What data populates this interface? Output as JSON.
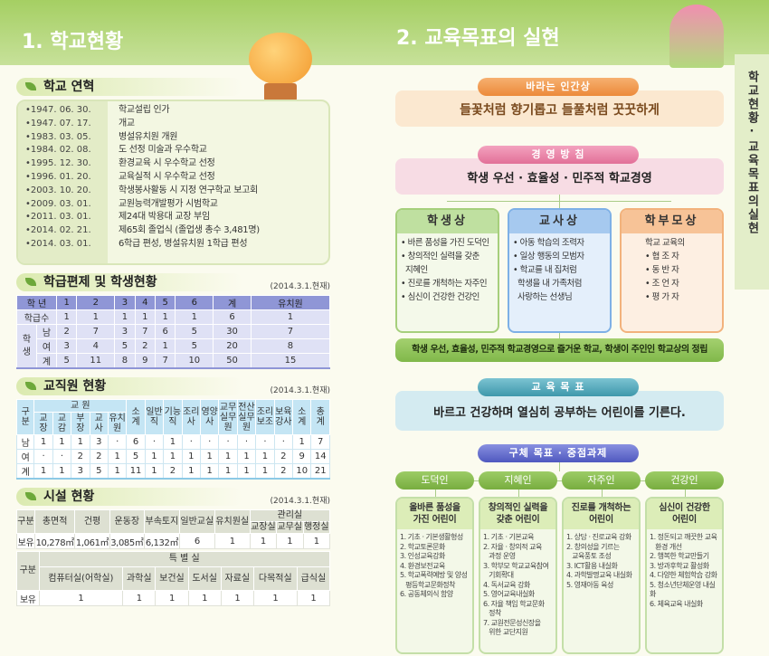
{
  "left": {
    "title": "1. 학교현황",
    "history": {
      "title": "학교 연혁",
      "items": [
        {
          "date": "•1947. 06. 30.",
          "text": "학교설립 인가"
        },
        {
          "date": "•1947. 07. 17.",
          "text": "개교"
        },
        {
          "date": "•1983. 03. 05.",
          "text": "병설유치원 개원"
        },
        {
          "date": "•1984. 02. 08.",
          "text": "도 선정 미술과 우수학교"
        },
        {
          "date": "•1995. 12. 30.",
          "text": "환경교육 시 우수학교 선정"
        },
        {
          "date": "•1996. 01. 20.",
          "text": "교육실적 시 우수학교 선정"
        },
        {
          "date": "•2003. 10. 20.",
          "text": "학생봉사활동 시 지정 연구학교 보고회"
        },
        {
          "date": "•2009. 03. 01.",
          "text": "교원능력개발평가 시범학교"
        },
        {
          "date": "•2011. 03. 01.",
          "text": "제24대 박용대 교장 부임"
        },
        {
          "date": "•2014. 02. 21.",
          "text": "제65회 졸업식 (졸업생 총수 3,481명)"
        },
        {
          "date": "•2014. 03. 01.",
          "text": "6학급 편성, 병설유치원 1학급 편성"
        }
      ]
    },
    "classes": {
      "title": "학급편제 및 학생현황",
      "note": "(2014.3.1.현재)",
      "header": [
        "학 년",
        "1",
        "2",
        "3",
        "4",
        "5",
        "6",
        "계",
        "유치원"
      ],
      "class_row": {
        "label": "학급수",
        "values": [
          "1",
          "1",
          "1",
          "1",
          "1",
          "1",
          "6",
          "1"
        ]
      },
      "student_label": "학 생",
      "rows": [
        {
          "label": "남",
          "values": [
            "2",
            "7",
            "3",
            "7",
            "6",
            "5",
            "30",
            "7"
          ]
        },
        {
          "label": "여",
          "values": [
            "3",
            "4",
            "5",
            "2",
            "1",
            "5",
            "20",
            "8"
          ]
        },
        {
          "label": "계",
          "values": [
            "5",
            "11",
            "8",
            "9",
            "7",
            "10",
            "50",
            "15"
          ]
        }
      ]
    },
    "staff": {
      "title": "교직원 현황",
      "note": "(2014.3.1.현재)",
      "corner": "구 분",
      "group": "교 원",
      "group_cols": [
        "교 장",
        "교 감",
        "부 장",
        "교 사",
        "유치원"
      ],
      "cols": [
        "소 계",
        "일반직",
        "기능직",
        "조리사",
        "영양사",
        "교무실무원",
        "전산실무원",
        "조리보조",
        "보육강사",
        "소 계",
        "총 계"
      ],
      "rows": [
        {
          "label": "남",
          "values": [
            "1",
            "1",
            "1",
            "3",
            "·",
            "6",
            "·",
            "1",
            "·",
            "·",
            "·",
            "·",
            "·",
            "·",
            "1",
            "7"
          ]
        },
        {
          "label": "여",
          "values": [
            "·",
            "·",
            "2",
            "2",
            "1",
            "5",
            "1",
            "1",
            "1",
            "1",
            "1",
            "1",
            "1",
            "2",
            "9",
            "14"
          ]
        },
        {
          "label": "계",
          "values": [
            "1",
            "1",
            "3",
            "5",
            "1",
            "11",
            "1",
            "2",
            "1",
            "1",
            "1",
            "1",
            "1",
            "2",
            "10",
            "21"
          ]
        }
      ]
    },
    "facilities": {
      "title": "시설 현황",
      "note": "(2014.3.1.현재)",
      "t1": {
        "corner": "구분",
        "cols": [
          "총면적",
          "건평",
          "운동장",
          "부속토지",
          "일반교실",
          "유치원실"
        ],
        "group": "관리실",
        "group_cols": [
          "교장실",
          "교무실",
          "행정실"
        ],
        "row_label": "보유",
        "values": [
          "10,278㎡",
          "1,061㎡",
          "3,085㎡",
          "6,132㎡",
          "6",
          "1",
          "1",
          "1",
          "1"
        ]
      },
      "t2": {
        "corner": "구분",
        "group": "특 별 실",
        "cols": [
          "컴퓨터실(어학실)",
          "과학실",
          "보건실",
          "도서실",
          "자료실",
          "다목적실",
          "급식실"
        ],
        "row_label": "보유",
        "values": [
          "1",
          "1",
          "1",
          "1",
          "1",
          "1",
          "1"
        ]
      }
    }
  },
  "right": {
    "title": "2. 교육목표의 실현",
    "side_tab": "학교현황·교육목표의실현",
    "vision": {
      "label": "바라는 인간상",
      "text": "들꽃처럼 향기롭고 들풀처럼 꿋꿋하게"
    },
    "policy": {
      "label": "경 영 방 침",
      "text": "학생 우선 · 효율성 · 민주적 학교경영"
    },
    "cards": [
      {
        "title": "학생상",
        "items": [
          "• 바른 품성을 가진 도덕인",
          "• 창의적인 실력을 갖춘",
          "  지혜인",
          "• 진로를 개척하는 자주인",
          "• 심신이 건강한 건강인"
        ]
      },
      {
        "title": "교사상",
        "items": [
          "• 아동 학습의 조력자",
          "• 일상 행동의 모범자",
          "• 학교를 내 집처럼",
          "  학생을 내 가족처럼",
          "  사랑하는 선생님"
        ]
      },
      {
        "title": "학부모상",
        "items": [
          "학교 교육의",
          "• 협 조 자",
          "• 동 반 자",
          "• 조 언 자",
          "• 평 가 자"
        ]
      }
    ],
    "summary": "학생 우선, 효율성, 민주적 학교경영으로 즐거운 학교, 학생이 주인인 학교상의 정립",
    "edu_goal": {
      "label": "교 육 목 표",
      "text": "바르고 건강하며 열심히 공부하는 어린이를 기른다."
    },
    "tasks_label": "구체 목표 · 중점과제",
    "goals": [
      {
        "name": "도덕인",
        "heading": [
          "올바른 품성을",
          "가진 어린이"
        ],
        "items": [
          "1. 기초 · 기본생활형성",
          "2. 학교토론문화",
          "3. 인성교육강화",
          "4. 환경보전교육",
          "5. 학교폭력예방 및 양성",
          "   평등학교문화정착",
          "6. 공동체의식 함양"
        ]
      },
      {
        "name": "지혜인",
        "heading": [
          "창의적인 실력을",
          "갖춘 어린이"
        ],
        "items": [
          "1. 기초 · 기본교육",
          "2. 자율 · 창의적 교육",
          "   과정 운영",
          "3. 학부모 학교교육참여",
          "   기회확대",
          "4. 독서교육 강화",
          "5. 영어교육내실화",
          "6. 자율 책임 학교문화",
          "   정착",
          "7. 교원전문성신장을",
          "   위한 교단지원"
        ]
      },
      {
        "name": "자주인",
        "heading": [
          "진로를 개척하는",
          "어린이"
        ],
        "items": [
          "1. 상담 · 진로교육 강화",
          "2. 창의성을 기르는",
          "   교육풍토 조성",
          "3. ICT활용 내실화",
          "4. 과학발명교육 내실화",
          "5. 영재아동 육성"
        ]
      },
      {
        "name": "건강인",
        "heading": [
          "심신이 건강한",
          "어린이"
        ],
        "items": [
          "1. 정돈되고 깨끗한 교육",
          "   환경 개선",
          "2. 행복한 학교만들기",
          "3. 방과후학교 활성화",
          "4. 다양한 체험학습 강화",
          "5. 청소년단체운영 내실화",
          "6. 체육교육 내실화"
        ]
      }
    ]
  },
  "colors": {
    "green": "#8dc45a",
    "purple": "#8f96d6",
    "blue": "#c4e5f4",
    "orange": "#f29a4a",
    "pink": "#e97fa3",
    "teal": "#4ea6b8",
    "violet": "#5d66c8"
  }
}
